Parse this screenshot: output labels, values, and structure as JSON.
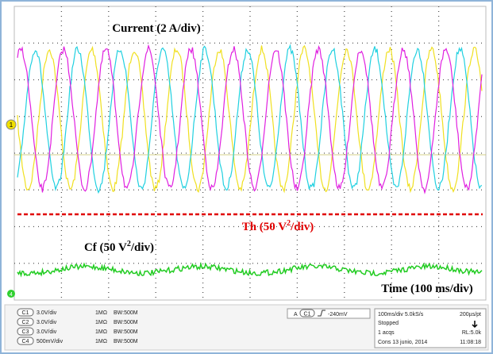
{
  "annotations": {
    "current": "Current (2 A/div)",
    "th": {
      "pre": "Th (50 V",
      "sup": "2",
      "post": "/div)"
    },
    "cf": {
      "pre": "Cf (50 V",
      "sup": "2",
      "post": "/div)"
    },
    "time": "Time (100 ms/div)"
  },
  "markers": {
    "ch1": "1",
    "ch4": "4"
  },
  "channels": [
    {
      "id": "C1",
      "scale": "3.0V/div",
      "impedance": "1MΩ",
      "bw": "BW:500M"
    },
    {
      "id": "C2",
      "scale": "3.0V/div",
      "impedance": "1MΩ",
      "bw": "BW:500M"
    },
    {
      "id": "C3",
      "scale": "3.0V/div",
      "impedance": "1MΩ",
      "bw": "BW:500M"
    },
    {
      "id": "C4",
      "scale": "500mV/div",
      "impedance": "1MΩ",
      "bw": "BW:500M"
    }
  ],
  "trigger": {
    "mode": "A",
    "source": "C1",
    "level": "-240mV"
  },
  "acquisition": {
    "timebase": "100ms/div  5.0kS/s",
    "resolution": "200µs/pt",
    "state": "Stopped",
    "count": "1 acqs",
    "length": "RL:5.0k",
    "date": "Cons  13 junio, 2014",
    "time": "11:08:18"
  }
}
